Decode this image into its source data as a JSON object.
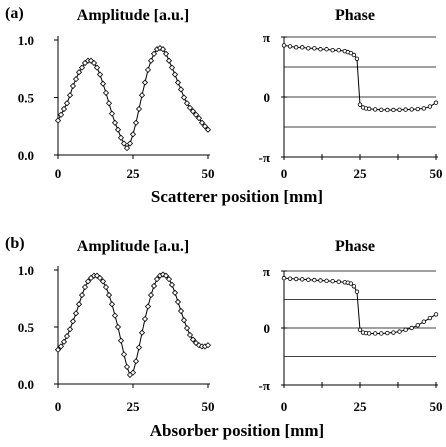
{
  "chart_data": {
    "type": "line",
    "panels": [
      {
        "label": "(a)",
        "xlabel": "Scatterer position [mm]",
        "xticks": [
          "0",
          "25",
          "50"
        ],
        "xlim": [
          0,
          50
        ],
        "amplitude": {
          "title": "Amplitude [a.u.]",
          "yticks": [
            "0.0",
            "0.5",
            "1.0"
          ],
          "ylim": [
            0,
            1
          ],
          "grid": false,
          "x": [
            0,
            1,
            2,
            3,
            4,
            5,
            6,
            7,
            8,
            9,
            10,
            11,
            12,
            13,
            14,
            15,
            16,
            17,
            18,
            19,
            20,
            21,
            22,
            23,
            24,
            25,
            26,
            27,
            28,
            29,
            30,
            31,
            32,
            33,
            34,
            35,
            36,
            37,
            38,
            39,
            40,
            41,
            42,
            43,
            44,
            45,
            46,
            47,
            48,
            49,
            50
          ],
          "y": [
            0.3,
            0.35,
            0.4,
            0.45,
            0.52,
            0.6,
            0.66,
            0.72,
            0.76,
            0.8,
            0.82,
            0.82,
            0.8,
            0.76,
            0.7,
            0.62,
            0.54,
            0.45,
            0.36,
            0.28,
            0.22,
            0.15,
            0.1,
            0.06,
            0.1,
            0.18,
            0.28,
            0.4,
            0.52,
            0.63,
            0.74,
            0.82,
            0.88,
            0.92,
            0.93,
            0.92,
            0.88,
            0.82,
            0.76,
            0.7,
            0.63,
            0.57,
            0.5,
            0.45,
            0.41,
            0.38,
            0.35,
            0.32,
            0.28,
            0.25,
            0.22
          ]
        },
        "phase": {
          "title": "Phase",
          "yticks": [
            "-π",
            "0",
            "π"
          ],
          "ylim": [
            -3.1416,
            3.1416
          ],
          "grid": true,
          "x": [
            0,
            2,
            4,
            6,
            8,
            10,
            12,
            14,
            16,
            18,
            20,
            21,
            22,
            23,
            24,
            25,
            26,
            27,
            28,
            30,
            32,
            34,
            36,
            38,
            40,
            42,
            44,
            46,
            48,
            50
          ],
          "y": [
            2.7,
            2.65,
            2.6,
            2.6,
            2.55,
            2.55,
            2.5,
            2.5,
            2.45,
            2.45,
            2.4,
            2.35,
            2.3,
            2.2,
            2.0,
            -0.4,
            -0.55,
            -0.6,
            -0.62,
            -0.65,
            -0.67,
            -0.68,
            -0.68,
            -0.67,
            -0.66,
            -0.65,
            -0.63,
            -0.6,
            -0.5,
            -0.3
          ]
        }
      },
      {
        "label": "(b)",
        "xlabel": "Absorber position [mm]",
        "xticks": [
          "0",
          "25",
          "50"
        ],
        "xlim": [
          0,
          50
        ],
        "amplitude": {
          "title": "Amplitude [a.u.]",
          "yticks": [
            "0.0",
            "0.5",
            "1.0"
          ],
          "ylim": [
            0,
            1
          ],
          "grid": false,
          "x": [
            0,
            1,
            2,
            3,
            4,
            5,
            6,
            7,
            8,
            9,
            10,
            11,
            12,
            13,
            14,
            15,
            16,
            17,
            18,
            19,
            20,
            21,
            22,
            23,
            24,
            25,
            26,
            27,
            28,
            29,
            30,
            31,
            32,
            33,
            34,
            35,
            36,
            37,
            38,
            39,
            40,
            41,
            42,
            43,
            44,
            45,
            46,
            47,
            48,
            49,
            50
          ],
          "y": [
            0.3,
            0.33,
            0.37,
            0.42,
            0.48,
            0.55,
            0.62,
            0.7,
            0.78,
            0.85,
            0.9,
            0.93,
            0.95,
            0.95,
            0.93,
            0.9,
            0.85,
            0.78,
            0.7,
            0.6,
            0.5,
            0.38,
            0.26,
            0.15,
            0.08,
            0.1,
            0.2,
            0.32,
            0.45,
            0.57,
            0.68,
            0.78,
            0.86,
            0.92,
            0.95,
            0.96,
            0.95,
            0.92,
            0.87,
            0.8,
            0.72,
            0.64,
            0.56,
            0.49,
            0.43,
            0.39,
            0.36,
            0.34,
            0.33,
            0.33,
            0.34
          ]
        },
        "phase": {
          "title": "Phase",
          "yticks": [
            "-π",
            "0",
            "π"
          ],
          "ylim": [
            -3.1416,
            3.1416
          ],
          "grid": true,
          "x": [
            0,
            2,
            4,
            6,
            8,
            10,
            12,
            14,
            16,
            18,
            20,
            21,
            22,
            23,
            24,
            25,
            26,
            27,
            28,
            30,
            32,
            34,
            36,
            38,
            40,
            42,
            44,
            46,
            48,
            50
          ],
          "y": [
            2.75,
            2.72,
            2.7,
            2.68,
            2.66,
            2.64,
            2.62,
            2.6,
            2.58,
            2.55,
            2.52,
            2.5,
            2.45,
            2.3,
            2.0,
            -0.1,
            -0.25,
            -0.28,
            -0.3,
            -0.3,
            -0.3,
            -0.28,
            -0.25,
            -0.2,
            -0.1,
            0.0,
            0.15,
            0.35,
            0.55,
            0.75
          ]
        }
      }
    ]
  }
}
